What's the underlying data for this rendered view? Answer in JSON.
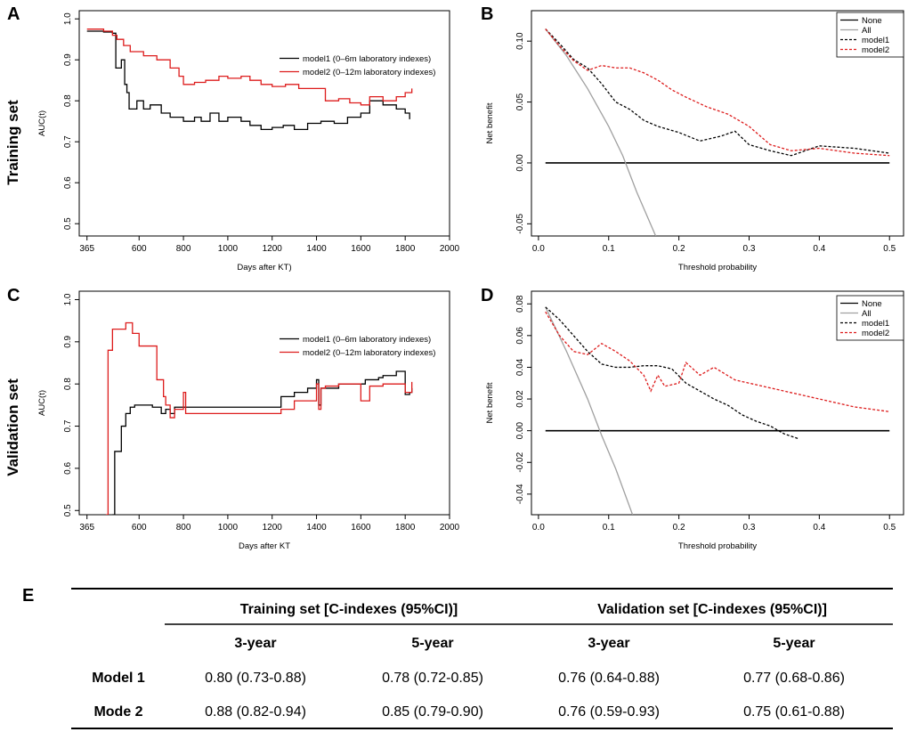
{
  "labels": {
    "panel_a": "A",
    "panel_b": "B",
    "panel_c": "C",
    "panel_d": "D",
    "panel_e": "E",
    "training_side": "Training set",
    "validation_side": "Validation set"
  },
  "colors": {
    "model1": "#000000",
    "model2": "#dd1c1c",
    "all": "#a0a0a0",
    "none": "#000000"
  },
  "chart_data": [
    {
      "id": "A",
      "type": "line",
      "xlabel": "Days after KT)",
      "ylabel": "AUC(t)",
      "xlim": [
        330,
        2000
      ],
      "ylim": [
        0.47,
        1.02
      ],
      "xticks": [
        365,
        600,
        800,
        1000,
        1200,
        1400,
        1600,
        1800,
        2000
      ],
      "yticks": [
        0.5,
        0.6,
        0.7,
        0.8,
        0.9,
        1.0
      ],
      "ytick_labels": [
        "0.5",
        "0.6",
        "0.7",
        "0.8",
        "0.9",
        "1.0"
      ],
      "legend_position": "top-right",
      "series": [
        {
          "name": "model1 (0–6m laboratory indexes)",
          "color": "#000000",
          "dash": "solid",
          "x": [
            365,
            440,
            480,
            495,
            520,
            535,
            545,
            555,
            590,
            620,
            650,
            700,
            740,
            800,
            850,
            880,
            920,
            960,
            1000,
            1060,
            1100,
            1150,
            1200,
            1250,
            1300,
            1360,
            1420,
            1480,
            1540,
            1600,
            1640,
            1700,
            1760,
            1800,
            1820
          ],
          "y": [
            0.97,
            0.968,
            0.965,
            0.88,
            0.9,
            0.84,
            0.82,
            0.78,
            0.8,
            0.78,
            0.79,
            0.77,
            0.76,
            0.75,
            0.76,
            0.75,
            0.77,
            0.75,
            0.76,
            0.75,
            0.74,
            0.73,
            0.735,
            0.74,
            0.73,
            0.745,
            0.75,
            0.745,
            0.76,
            0.77,
            0.8,
            0.79,
            0.78,
            0.77,
            0.755
          ]
        },
        {
          "name": "model2 (0–12m laboratory indexes)",
          "color": "#dd1c1c",
          "dash": "solid",
          "x": [
            365,
            440,
            480,
            500,
            530,
            560,
            620,
            680,
            740,
            780,
            800,
            850,
            900,
            960,
            1000,
            1060,
            1100,
            1150,
            1200,
            1260,
            1320,
            1380,
            1440,
            1500,
            1550,
            1600,
            1640,
            1700,
            1760,
            1800,
            1830
          ],
          "y": [
            0.975,
            0.97,
            0.96,
            0.95,
            0.935,
            0.92,
            0.91,
            0.9,
            0.88,
            0.86,
            0.84,
            0.845,
            0.85,
            0.86,
            0.855,
            0.86,
            0.85,
            0.84,
            0.835,
            0.84,
            0.83,
            0.83,
            0.8,
            0.805,
            0.795,
            0.79,
            0.81,
            0.8,
            0.81,
            0.82,
            0.83
          ]
        }
      ]
    },
    {
      "id": "B",
      "type": "line",
      "xlabel": "Threshold probability",
      "ylabel": "Net benefit",
      "xlim": [
        -0.01,
        0.52
      ],
      "ylim": [
        -0.06,
        0.125
      ],
      "xticks": [
        0.0,
        0.1,
        0.2,
        0.3,
        0.4,
        0.5
      ],
      "xtick_labels": [
        "0.0",
        "0.1",
        "0.2",
        "0.3",
        "0.4",
        "0.5"
      ],
      "yticks": [
        -0.05,
        0.0,
        0.05,
        0.1
      ],
      "ytick_labels": [
        "-0.05",
        "0.00",
        "0.05",
        "0.10"
      ],
      "legend_position": "top-right",
      "series": [
        {
          "name": "None",
          "color": "#000000",
          "dash": "solid",
          "x": [
            0.01,
            0.5
          ],
          "y": [
            0.0,
            0.0
          ]
        },
        {
          "name": "All",
          "color": "#a0a0a0",
          "dash": "solid",
          "x": [
            0.01,
            0.04,
            0.07,
            0.1,
            0.12,
            0.14,
            0.167
          ],
          "y": [
            0.11,
            0.088,
            0.061,
            0.03,
            0.006,
            -0.024,
            -0.06
          ]
        },
        {
          "name": "model1",
          "color": "#000000",
          "dash": "dashed",
          "x": [
            0.01,
            0.03,
            0.05,
            0.07,
            0.09,
            0.11,
            0.13,
            0.15,
            0.17,
            0.2,
            0.23,
            0.26,
            0.28,
            0.3,
            0.33,
            0.36,
            0.4,
            0.45,
            0.5
          ],
          "y": [
            0.11,
            0.098,
            0.085,
            0.078,
            0.065,
            0.05,
            0.044,
            0.035,
            0.03,
            0.025,
            0.018,
            0.022,
            0.026,
            0.015,
            0.01,
            0.006,
            0.014,
            0.012,
            0.008
          ]
        },
        {
          "name": "model2",
          "color": "#dd1c1c",
          "dash": "dashed",
          "x": [
            0.01,
            0.03,
            0.05,
            0.07,
            0.09,
            0.11,
            0.13,
            0.15,
            0.17,
            0.19,
            0.21,
            0.24,
            0.27,
            0.3,
            0.33,
            0.36,
            0.4,
            0.45,
            0.5
          ],
          "y": [
            0.11,
            0.096,
            0.084,
            0.076,
            0.08,
            0.078,
            0.078,
            0.074,
            0.068,
            0.06,
            0.054,
            0.046,
            0.04,
            0.03,
            0.015,
            0.01,
            0.012,
            0.008,
            0.006
          ]
        }
      ]
    },
    {
      "id": "C",
      "type": "line",
      "xlabel": "Days after KT",
      "ylabel": "AUC(t)",
      "xlim": [
        330,
        2000
      ],
      "ylim": [
        0.49,
        1.02
      ],
      "xticks": [
        365,
        600,
        800,
        1000,
        1200,
        1400,
        1600,
        1800,
        2000
      ],
      "yticks": [
        0.5,
        0.6,
        0.7,
        0.8,
        0.9,
        1.0
      ],
      "ytick_labels": [
        "0.5",
        "0.6",
        "0.7",
        "0.8",
        "0.9",
        "1.0"
      ],
      "legend_position": "top-right",
      "series": [
        {
          "name": "model1 (0–6m laboratory indexes)",
          "color": "#000000",
          "dash": "solid",
          "x": [
            480,
            490,
            500,
            520,
            540,
            560,
            580,
            620,
            660,
            700,
            720,
            740,
            760,
            800,
            1000,
            1220,
            1240,
            1300,
            1360,
            1400,
            1410,
            1420,
            1440,
            1500,
            1560,
            1620,
            1680,
            1700,
            1760,
            1800,
            1820,
            1830
          ],
          "y": [
            0.49,
            0.64,
            0.64,
            0.7,
            0.73,
            0.745,
            0.75,
            0.75,
            0.745,
            0.73,
            0.74,
            0.73,
            0.745,
            0.745,
            0.745,
            0.745,
            0.77,
            0.78,
            0.79,
            0.81,
            0.75,
            0.79,
            0.79,
            0.8,
            0.8,
            0.81,
            0.815,
            0.82,
            0.83,
            0.775,
            0.78,
            0.79
          ]
        },
        {
          "name": "model2 (0–12m laboratory indexes)",
          "color": "#dd1c1c",
          "dash": "solid",
          "x": [
            450,
            460,
            480,
            510,
            540,
            570,
            600,
            650,
            680,
            710,
            720,
            740,
            760,
            800,
            810,
            900,
            1100,
            1240,
            1300,
            1400,
            1410,
            1420,
            1440,
            1500,
            1560,
            1600,
            1640,
            1700,
            1760,
            1800,
            1830
          ],
          "y": [
            0.49,
            0.88,
            0.93,
            0.93,
            0.945,
            0.92,
            0.89,
            0.89,
            0.81,
            0.77,
            0.75,
            0.72,
            0.74,
            0.78,
            0.73,
            0.73,
            0.73,
            0.74,
            0.76,
            0.8,
            0.74,
            0.79,
            0.795,
            0.8,
            0.8,
            0.76,
            0.795,
            0.8,
            0.8,
            0.78,
            0.805
          ]
        }
      ]
    },
    {
      "id": "D",
      "type": "line",
      "xlabel": "Threshold probability",
      "ylabel": "Net benefit",
      "xlim": [
        -0.01,
        0.52
      ],
      "ylim": [
        -0.053,
        0.088
      ],
      "xticks": [
        0.0,
        0.1,
        0.2,
        0.3,
        0.4,
        0.5
      ],
      "xtick_labels": [
        "0.0",
        "0.1",
        "0.2",
        "0.3",
        "0.4",
        "0.5"
      ],
      "yticks": [
        -0.04,
        -0.02,
        0.0,
        0.02,
        0.04,
        0.06,
        0.08
      ],
      "ytick_labels": [
        "-0.04",
        "-0.02",
        "0.00",
        "0.02",
        "0.04",
        "0.06",
        "0.08"
      ],
      "legend_position": "top-right",
      "series": [
        {
          "name": "None",
          "color": "#000000",
          "dash": "solid",
          "x": [
            0.01,
            0.5
          ],
          "y": [
            0.0,
            0.0
          ]
        },
        {
          "name": "All",
          "color": "#a0a0a0",
          "dash": "solid",
          "x": [
            0.01,
            0.04,
            0.07,
            0.09,
            0.11,
            0.134
          ],
          "y": [
            0.078,
            0.05,
            0.02,
            -0.003,
            -0.024,
            -0.053
          ]
        },
        {
          "name": "model1",
          "color": "#000000",
          "dash": "dashed",
          "x": [
            0.01,
            0.03,
            0.05,
            0.07,
            0.09,
            0.11,
            0.13,
            0.15,
            0.17,
            0.19,
            0.21,
            0.23,
            0.25,
            0.27,
            0.29,
            0.31,
            0.33,
            0.35,
            0.37
          ],
          "y": [
            0.078,
            0.07,
            0.06,
            0.05,
            0.042,
            0.04,
            0.04,
            0.041,
            0.041,
            0.039,
            0.03,
            0.025,
            0.02,
            0.016,
            0.01,
            0.006,
            0.003,
            -0.002,
            -0.005
          ]
        },
        {
          "name": "model2",
          "color": "#dd1c1c",
          "dash": "dashed",
          "x": [
            0.01,
            0.03,
            0.05,
            0.07,
            0.09,
            0.11,
            0.13,
            0.15,
            0.16,
            0.17,
            0.18,
            0.2,
            0.21,
            0.23,
            0.25,
            0.28,
            0.3,
            0.35,
            0.4,
            0.45,
            0.5
          ],
          "y": [
            0.075,
            0.06,
            0.05,
            0.048,
            0.055,
            0.05,
            0.044,
            0.035,
            0.025,
            0.035,
            0.028,
            0.03,
            0.043,
            0.035,
            0.04,
            0.032,
            0.03,
            0.025,
            0.02,
            0.015,
            0.012
          ]
        }
      ]
    }
  ],
  "table": {
    "group_headers": [
      "Training set [C-indexes (95%CI)]",
      "Validation set [C-indexes (95%CI)]"
    ],
    "sub_headers": [
      "3-year",
      "5-year",
      "3-year",
      "5-year"
    ],
    "rows": [
      {
        "label": "Model 1",
        "values": [
          "0.80 (0.73-0.88)",
          "0.78 (0.72-0.85)",
          "0.76 (0.64-0.88)",
          "0.77 (0.68-0.86)"
        ]
      },
      {
        "label": "Mode 2",
        "values": [
          "0.88 (0.82-0.94)",
          "0.85 (0.79-0.90)",
          "0.76 (0.59-0.93)",
          "0.75 (0.61-0.88)"
        ]
      }
    ]
  }
}
